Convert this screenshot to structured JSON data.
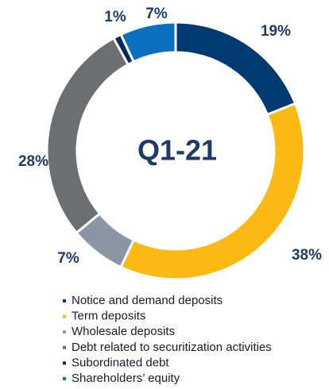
{
  "chart_data": {
    "type": "donut",
    "center_label": "Q1-21",
    "categories": [
      "Notice and demand deposits",
      "Term deposits",
      "Wholesale deposits",
      "Debt related to securitization activities",
      "Subordinated debt",
      "Shareholders’ equity"
    ],
    "values": [
      19,
      38,
      7,
      28,
      1,
      7
    ],
    "value_labels": [
      "19%",
      "38%",
      "7%",
      "28%",
      "1%",
      "7%"
    ],
    "colors": [
      "#003a70",
      "#fdb913",
      "#8b95a6",
      "#6d6e71",
      "#002b5c",
      "#0b6fc0"
    ],
    "legend": "bottom"
  }
}
